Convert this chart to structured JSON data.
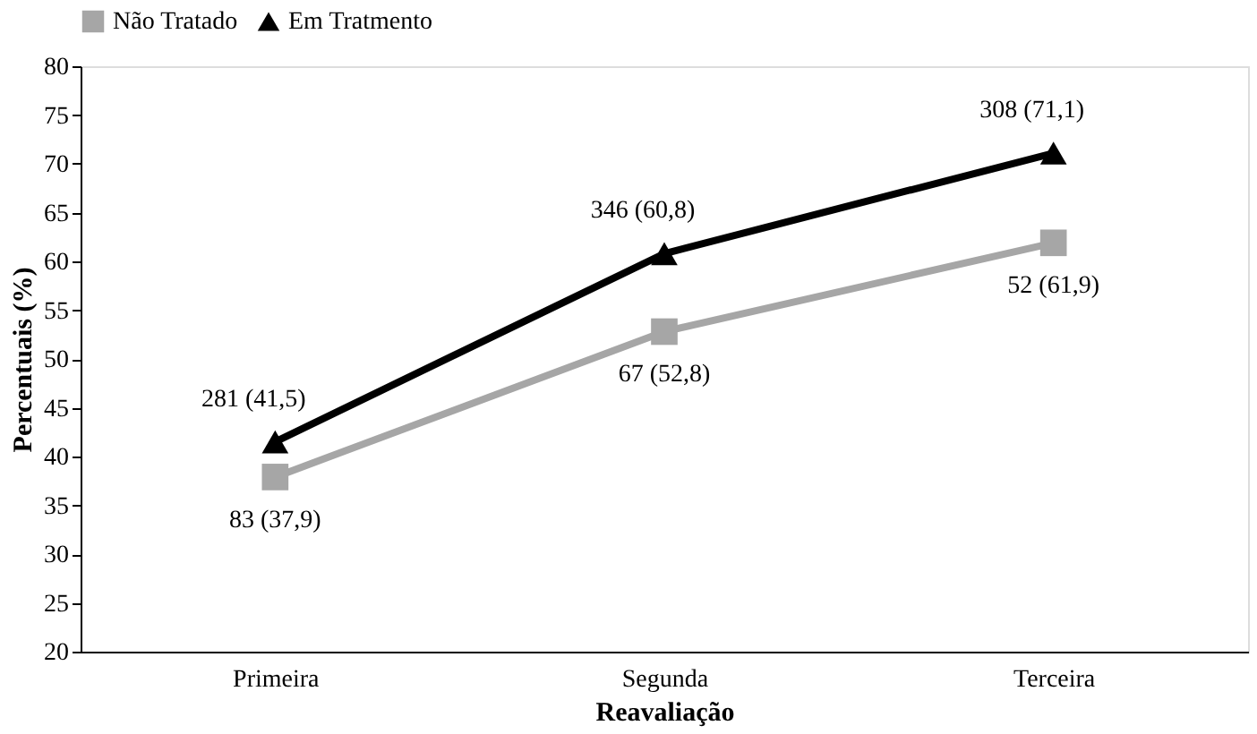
{
  "chart_data": {
    "type": "line",
    "xlabel": "Reavaliação",
    "ylabel": "Percentuais (%)",
    "categories": [
      "Primeira",
      "Segunda",
      "Terceira"
    ],
    "series": [
      {
        "name": "Não Tratado",
        "color": "#a6a6a6",
        "marker": "square",
        "values": [
          37.9,
          52.8,
          61.9
        ],
        "value_labels": [
          "83 (37,9)",
          "67 (52,8)",
          "52 (61,9)"
        ]
      },
      {
        "name": "Em Tratmento",
        "color": "#000000",
        "marker": "triangle",
        "values": [
          41.5,
          60.8,
          71.1
        ],
        "value_labels": [
          "281 (41,5)",
          "346 (60,8)",
          "308 (71,1)"
        ]
      }
    ],
    "ylim": [
      20,
      80
    ],
    "yticks": [
      20,
      25,
      30,
      35,
      40,
      45,
      50,
      55,
      60,
      65,
      70,
      75,
      80
    ],
    "grid": false,
    "legend": "top",
    "line_style": "solid"
  }
}
